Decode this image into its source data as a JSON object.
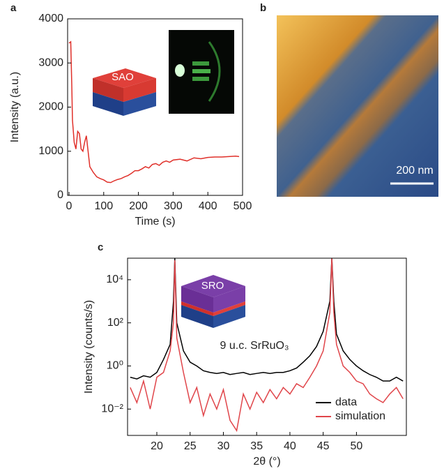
{
  "chart_data": [
    {
      "type": "line",
      "panel_label": "a",
      "xlabel": "Time (s)",
      "ylabel": "Intensity (a.u.)",
      "annotations": [
        "SAO"
      ],
      "xlim": [
        -4,
        500
      ],
      "ylim": [
        0,
        4000
      ],
      "xticks": [
        0,
        100,
        200,
        300,
        400,
        500
      ],
      "yticks": [
        0,
        1000,
        2000,
        3000,
        4000
      ],
      "x": [
        0,
        5,
        8,
        10,
        15,
        20,
        25,
        30,
        35,
        40,
        45,
        50,
        55,
        60,
        70,
        80,
        90,
        100,
        110,
        120,
        130,
        140,
        150,
        160,
        170,
        180,
        190,
        200,
        210,
        220,
        230,
        240,
        250,
        260,
        270,
        280,
        290,
        300,
        320,
        340,
        360,
        380,
        400,
        420,
        440,
        460,
        480,
        490
      ],
      "series": [
        {
          "color": "#e0302a",
          "values": [
            3450,
            3480,
            2500,
            1700,
            1200,
            1050,
            1450,
            1400,
            1050,
            1000,
            1200,
            1350,
            1000,
            650,
            520,
            420,
            380,
            350,
            300,
            290,
            330,
            360,
            380,
            420,
            450,
            500,
            560,
            560,
            600,
            650,
            620,
            700,
            720,
            680,
            750,
            780,
            750,
            800,
            820,
            780,
            850,
            830,
            860,
            870,
            870,
            880,
            890,
            880
          ]
        }
      ]
    },
    {
      "type": "image",
      "panel_label": "b",
      "annotations": [
        "200 nm"
      ]
    },
    {
      "type": "line",
      "panel_label": "c",
      "xlabel": "2θ (°)",
      "ylabel": "Intensity (counts/s)",
      "annotations": [
        "SRO",
        "9 u.c. SrRuO₃"
      ],
      "log_y": true,
      "legend": "lower right",
      "xlim": [
        15.6,
        57.5
      ],
      "ylim": [
        0.0006,
        100000
      ],
      "xticks": [
        20,
        25,
        30,
        35,
        40,
        45,
        50
      ],
      "yticks": [
        {
          "value": 0.01,
          "label": "10⁻²"
        },
        {
          "value": 1,
          "label": "10⁰"
        },
        {
          "value": 100,
          "label": "10²"
        },
        {
          "value": 10000,
          "label": "10⁴"
        }
      ],
      "x": [
        16,
        17,
        18,
        19,
        20,
        21,
        22,
        22.5,
        22.7,
        23,
        24,
        25,
        26,
        27,
        28,
        29,
        30,
        31,
        32,
        33,
        34,
        35,
        36,
        37,
        38,
        39,
        40,
        41,
        42,
        43,
        44,
        45,
        46,
        46.3,
        46.6,
        47,
        48,
        49,
        50,
        51,
        52,
        53,
        54,
        55,
        56,
        57
      ],
      "series": [
        {
          "name": "data",
          "color": "#000000",
          "values": [
            0.3,
            0.25,
            0.35,
            0.3,
            0.5,
            2,
            10,
            1000,
            100000,
            100,
            5,
            1.5,
            1,
            0.6,
            0.5,
            0.45,
            0.5,
            0.4,
            0.45,
            0.5,
            0.4,
            0.45,
            0.5,
            0.45,
            0.5,
            0.5,
            0.6,
            0.8,
            1.5,
            3,
            8,
            40,
            1000,
            100000,
            1000,
            30,
            5,
            2,
            1,
            0.6,
            0.4,
            0.3,
            0.2,
            0.2,
            0.3,
            0.2
          ]
        },
        {
          "name": "simulation",
          "color": "#e0454a",
          "values": [
            0.1,
            0.02,
            0.2,
            0.01,
            0.3,
            0.5,
            5,
            100,
            80000,
            20,
            0.5,
            0.02,
            0.1,
            0.005,
            0.05,
            0.01,
            0.08,
            0.003,
            0.001,
            0.05,
            0.01,
            0.06,
            0.02,
            0.08,
            0.03,
            0.1,
            0.05,
            0.15,
            0.1,
            0.3,
            1,
            5,
            300,
            100000,
            300,
            10,
            1,
            0.5,
            0.2,
            0.15,
            0.05,
            0.03,
            0.02,
            0.05,
            0.1,
            0.03
          ]
        }
      ]
    }
  ]
}
